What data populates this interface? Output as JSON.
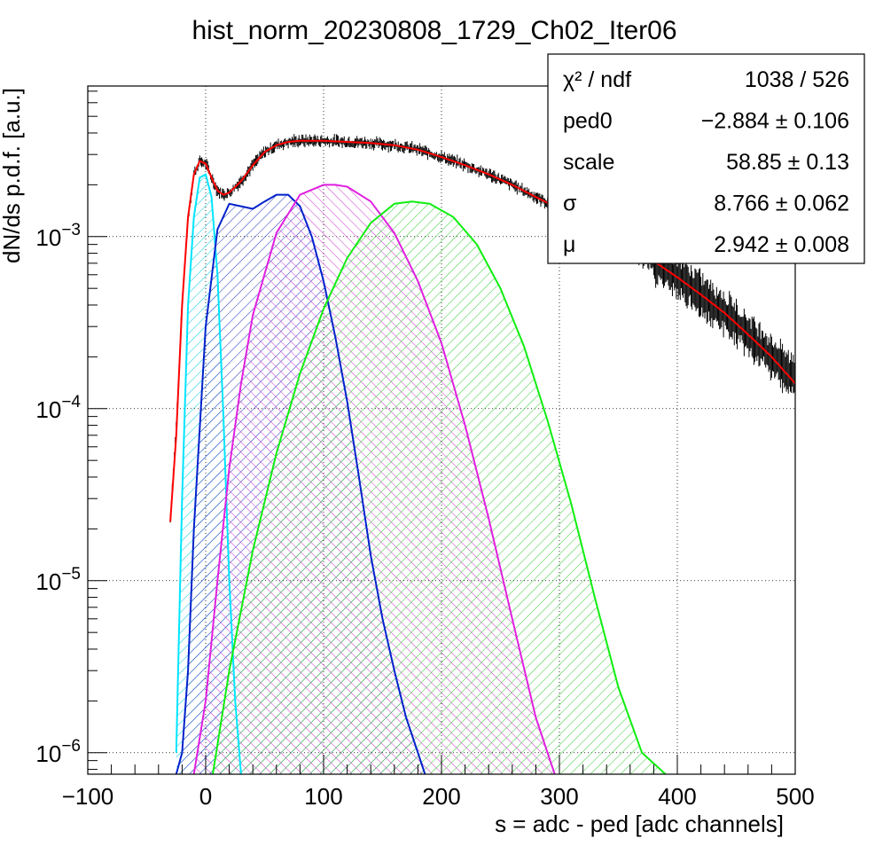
{
  "chart_data": {
    "type": "line",
    "title": "hist_norm_20230808_1729_Ch02_Iter06",
    "xlabel": "s = adc - ped [adc channels]",
    "ylabel": "dN/ds p.d.f. [a.u.]",
    "xlim": [
      -100,
      500
    ],
    "ylim": [
      7.5e-07,
      0.0075
    ],
    "yscale": "log",
    "grid": true,
    "x_ticks": [
      {
        "v": -100,
        "label": "−100"
      },
      {
        "v": 0,
        "label": "0"
      },
      {
        "v": 100,
        "label": "100"
      },
      {
        "v": 200,
        "label": "200"
      },
      {
        "v": 300,
        "label": "300"
      },
      {
        "v": 400,
        "label": "400"
      },
      {
        "v": 500,
        "label": "500"
      }
    ],
    "y_ticks": [
      {
        "v": 1e-06,
        "base": "10",
        "exp": "−6"
      },
      {
        "v": 1e-05,
        "base": "10",
        "exp": "−5"
      },
      {
        "v": 0.0001,
        "base": "10",
        "exp": "−4"
      },
      {
        "v": 0.001,
        "base": "10",
        "exp": "−3"
      }
    ],
    "stats": [
      {
        "name": "χ² / ndf",
        "value": "1038 / 526"
      },
      {
        "name": "ped0",
        "value": "−2.884 ± 0.106"
      },
      {
        "name": "scale",
        "value": "58.85 ± 0.13"
      },
      {
        "name": "σ",
        "value": "8.766 ± 0.062"
      },
      {
        "name": "μ",
        "value": "2.942 ± 0.008"
      }
    ],
    "series": [
      {
        "color": "#000000",
        "x": [
          -30,
          -25,
          -20,
          -15,
          -10,
          -5,
          0,
          5,
          10,
          15,
          20,
          30,
          40,
          50,
          60,
          70,
          80,
          90,
          100,
          120,
          140,
          160,
          180,
          200,
          220,
          240,
          260,
          280,
          300,
          320,
          340,
          360,
          380,
          400,
          420,
          440,
          460,
          480,
          500
        ],
        "y": [
          2.3e-05,
          8e-05,
          0.0004,
          0.0013,
          0.0023,
          0.00275,
          0.00265,
          0.0022,
          0.00185,
          0.00175,
          0.0018,
          0.0021,
          0.0026,
          0.0031,
          0.0034,
          0.00355,
          0.0036,
          0.0036,
          0.0036,
          0.00355,
          0.0035,
          0.0034,
          0.0032,
          0.0029,
          0.0026,
          0.0023,
          0.002,
          0.0017,
          0.00145,
          0.00125,
          0.00105,
          0.00087,
          0.00072,
          0.00058,
          0.00046,
          0.00036,
          0.00027,
          0.0002,
          0.00015
        ]
      },
      {
        "color": "#ff0000",
        "x": [
          -30,
          -25,
          -20,
          -15,
          -10,
          -5,
          0,
          5,
          10,
          15,
          20,
          30,
          40,
          50,
          60,
          70,
          80,
          90,
          100,
          120,
          140,
          160,
          180,
          200,
          220,
          240,
          260,
          280,
          300,
          320,
          340,
          360,
          380,
          400,
          420,
          440,
          460,
          480,
          500
        ],
        "y": [
          2.2e-05,
          7e-05,
          0.0004,
          0.0013,
          0.0023,
          0.00275,
          0.00265,
          0.0022,
          0.00185,
          0.00175,
          0.0018,
          0.0021,
          0.0026,
          0.0031,
          0.0034,
          0.00355,
          0.0036,
          0.0036,
          0.0036,
          0.00355,
          0.0035,
          0.0034,
          0.0032,
          0.0029,
          0.0026,
          0.0023,
          0.002,
          0.0017,
          0.00145,
          0.00125,
          0.00105,
          0.00087,
          0.00072,
          0.00058,
          0.00046,
          0.00036,
          0.00027,
          0.0002,
          0.00014
        ]
      },
      {
        "color": "#00e5ff",
        "x": [
          -25,
          -20,
          -15,
          -10,
          -5,
          0,
          5,
          10,
          15,
          20,
          25,
          30
        ],
        "y": [
          1e-06,
          3e-05,
          0.0004,
          0.0013,
          0.0022,
          0.0023,
          0.0017,
          0.0006,
          9e-05,
          1e-05,
          2e-06,
          7.5e-07
        ]
      },
      {
        "color": "#0022cc",
        "x": [
          -25,
          -20,
          -15,
          -10,
          0,
          10,
          20,
          30,
          40,
          50,
          60,
          70,
          80,
          90,
          100,
          110,
          120,
          130,
          140,
          150,
          160,
          170,
          180,
          186
        ],
        "y": [
          7.5e-07,
          1e-06,
          3e-06,
          2e-05,
          0.0003,
          0.0011,
          0.00155,
          0.0015,
          0.00145,
          0.0016,
          0.00175,
          0.00175,
          0.0015,
          0.001,
          0.00055,
          0.00026,
          0.00011,
          4e-05,
          1.4e-05,
          6e-06,
          3e-06,
          1.6e-06,
          1e-06,
          7.5e-07
        ]
      },
      {
        "color": "#e020e0",
        "x": [
          -10,
          0,
          10,
          20,
          30,
          40,
          60,
          80,
          100,
          110,
          120,
          140,
          160,
          180,
          200,
          220,
          240,
          260,
          280,
          296
        ],
        "y": [
          7.5e-07,
          2e-06,
          1e-05,
          4.5e-05,
          0.00014,
          0.00035,
          0.00105,
          0.00175,
          0.002,
          0.002,
          0.00195,
          0.0016,
          0.00105,
          0.00055,
          0.00024,
          8e-05,
          2.3e-05,
          6e-06,
          1.6e-06,
          7.5e-07
        ]
      },
      {
        "color": "#10ee10",
        "x": [
          6,
          20,
          40,
          60,
          80,
          100,
          120,
          140,
          160,
          175,
          190,
          210,
          230,
          250,
          270,
          290,
          310,
          330,
          350,
          370,
          390
        ],
        "y": [
          7.5e-07,
          3e-06,
          1.5e-05,
          5.5e-05,
          0.00016,
          0.00038,
          0.00075,
          0.0012,
          0.00155,
          0.0016,
          0.00155,
          0.0013,
          0.0009,
          0.0005,
          0.00023,
          8.5e-05,
          2.8e-05,
          8e-06,
          2.4e-06,
          1e-06,
          7.5e-07
        ]
      }
    ]
  }
}
